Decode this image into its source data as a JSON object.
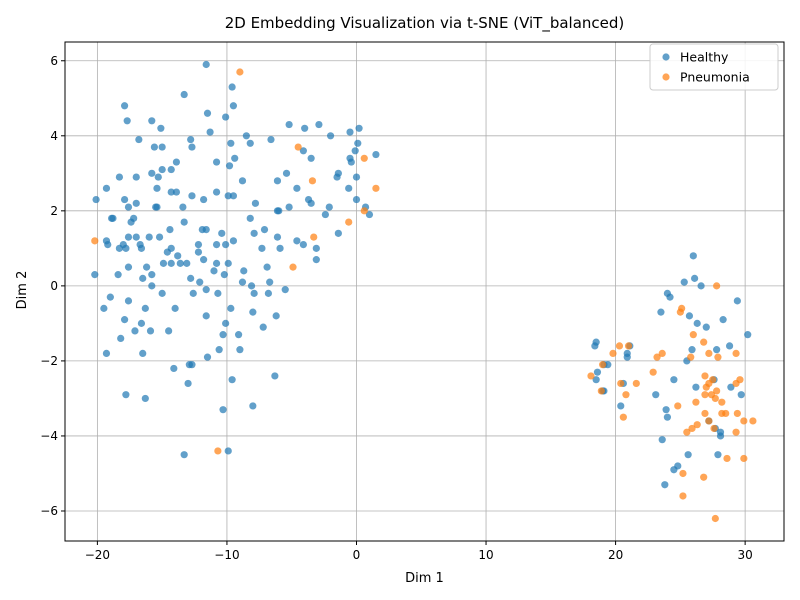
{
  "chart_data": {
    "type": "scatter",
    "title": "2D Embedding Visualization via t-SNE (ViT_balanced)",
    "xlabel": "Dim 1",
    "ylabel": "Dim 2",
    "xlim": [
      -22.5,
      33.0
    ],
    "ylim": [
      -6.8,
      6.5
    ],
    "xticks": [
      -20,
      -10,
      0,
      10,
      20,
      30
    ],
    "yticks": [
      -6,
      -4,
      -2,
      0,
      2,
      4,
      6
    ],
    "grid": true,
    "legend_position": "top-right",
    "series": [
      {
        "name": "Healthy",
        "color": "#1f77b4",
        "points": [
          [
            -11.6,
            5.9
          ],
          [
            -9.6,
            5.3
          ],
          [
            -13.3,
            5.1
          ],
          [
            -9.5,
            4.8
          ],
          [
            -17.9,
            4.8
          ],
          [
            -11.5,
            4.6
          ],
          [
            -10.1,
            4.5
          ],
          [
            -17.7,
            4.4
          ],
          [
            -15.8,
            4.4
          ],
          [
            -5.2,
            4.3
          ],
          [
            -2.9,
            4.3
          ],
          [
            -15.1,
            4.2
          ],
          [
            -4.0,
            4.2
          ],
          [
            0.2,
            4.2
          ],
          [
            -11.3,
            4.1
          ],
          [
            -0.5,
            4.1
          ],
          [
            -8.5,
            4.0
          ],
          [
            -2.0,
            4.0
          ],
          [
            -6.6,
            3.9
          ],
          [
            -12.8,
            3.9
          ],
          [
            -16.8,
            3.9
          ],
          [
            -8.2,
            3.8
          ],
          [
            -9.7,
            3.8
          ],
          [
            0.1,
            3.8
          ],
          [
            -15.6,
            3.7
          ],
          [
            -15.0,
            3.7
          ],
          [
            -12.7,
            3.7
          ],
          [
            -4.1,
            3.6
          ],
          [
            -0.1,
            3.6
          ],
          [
            -9.4,
            3.4
          ],
          [
            -3.5,
            3.4
          ],
          [
            1.5,
            3.5
          ],
          [
            -0.5,
            3.4
          ],
          [
            -0.4,
            3.3
          ],
          [
            -13.9,
            3.3
          ],
          [
            -10.8,
            3.3
          ],
          [
            -9.8,
            3.2
          ],
          [
            -15.0,
            3.1
          ],
          [
            -14.3,
            3.1
          ],
          [
            -5.4,
            3.0
          ],
          [
            -15.8,
            3.0
          ],
          [
            -15.3,
            2.9
          ],
          [
            -1.4,
            3.0
          ],
          [
            -1.5,
            2.9
          ],
          [
            -17.0,
            2.9
          ],
          [
            -18.3,
            2.9
          ],
          [
            0.0,
            2.9
          ],
          [
            -6.1,
            2.8
          ],
          [
            -8.8,
            2.8
          ],
          [
            -15.4,
            2.6
          ],
          [
            -19.3,
            2.6
          ],
          [
            -14.3,
            2.5
          ],
          [
            -13.9,
            2.5
          ],
          [
            -10.8,
            2.5
          ],
          [
            -9.9,
            2.4
          ],
          [
            -4.6,
            2.6
          ],
          [
            -0.6,
            2.6
          ],
          [
            -9.5,
            2.4
          ],
          [
            -12.7,
            2.4
          ],
          [
            -11.8,
            2.3
          ],
          [
            -20.1,
            2.3
          ],
          [
            -17.9,
            2.3
          ],
          [
            0.0,
            2.3
          ],
          [
            -3.7,
            2.3
          ],
          [
            -3.5,
            2.2
          ],
          [
            -7.8,
            2.2
          ],
          [
            -17.0,
            2.2
          ],
          [
            -17.6,
            2.1
          ],
          [
            -15.5,
            2.1
          ],
          [
            -15.4,
            2.1
          ],
          [
            -13.4,
            2.1
          ],
          [
            -2.1,
            2.1
          ],
          [
            -5.2,
            2.1
          ],
          [
            -6.1,
            2.0
          ],
          [
            0.7,
            2.1
          ],
          [
            1.0,
            1.9
          ],
          [
            -6.0,
            2.0
          ],
          [
            -2.4,
            1.9
          ],
          [
            -18.9,
            1.8
          ],
          [
            -18.8,
            1.8
          ],
          [
            -17.2,
            1.8
          ],
          [
            -17.4,
            1.7
          ],
          [
            -13.3,
            1.7
          ],
          [
            -8.2,
            1.8
          ],
          [
            -14.4,
            1.5
          ],
          [
            -11.9,
            1.5
          ],
          [
            -11.6,
            1.5
          ],
          [
            -7.1,
            1.5
          ],
          [
            -10.4,
            1.4
          ],
          [
            -7.9,
            1.4
          ],
          [
            -1.4,
            1.4
          ],
          [
            -16.0,
            1.3
          ],
          [
            -17.6,
            1.3
          ],
          [
            -15.2,
            1.3
          ],
          [
            -17.0,
            1.3
          ],
          [
            -19.3,
            1.2
          ],
          [
            -19.2,
            1.1
          ],
          [
            -16.7,
            1.1
          ],
          [
            -18.0,
            1.1
          ],
          [
            -18.3,
            1.0
          ],
          [
            -17.8,
            1.0
          ],
          [
            -16.6,
            1.0
          ],
          [
            -14.3,
            1.0
          ],
          [
            -12.2,
            1.1
          ],
          [
            -10.8,
            1.1
          ],
          [
            -10.1,
            1.1
          ],
          [
            -9.5,
            1.2
          ],
          [
            -6.1,
            1.3
          ],
          [
            -4.6,
            1.2
          ],
          [
            -4.1,
            1.1
          ],
          [
            -7.3,
            1.0
          ],
          [
            -5.9,
            1.0
          ],
          [
            -3.1,
            1.0
          ],
          [
            -14.6,
            0.9
          ],
          [
            -12.2,
            0.9
          ],
          [
            -13.8,
            0.8
          ],
          [
            -11.8,
            0.7
          ],
          [
            -10.8,
            0.6
          ],
          [
            -9.9,
            0.6
          ],
          [
            -14.9,
            0.6
          ],
          [
            -14.3,
            0.6
          ],
          [
            -13.6,
            0.6
          ],
          [
            -13.1,
            0.6
          ],
          [
            -3.1,
            0.7
          ],
          [
            -6.9,
            0.5
          ],
          [
            -16.2,
            0.5
          ],
          [
            -17.6,
            0.5
          ],
          [
            -8.7,
            0.4
          ],
          [
            -11.0,
            0.4
          ],
          [
            -18.4,
            0.3
          ],
          [
            -15.8,
            0.3
          ],
          [
            -12.8,
            0.2
          ],
          [
            -10.2,
            0.3
          ],
          [
            -16.5,
            0.2
          ],
          [
            -12.1,
            0.1
          ],
          [
            -6.7,
            0.1
          ],
          [
            -8.8,
            0.1
          ],
          [
            -8.1,
            0.0
          ],
          [
            -15.8,
            0.0
          ],
          [
            -5.5,
            -0.1
          ],
          [
            -11.6,
            -0.1
          ],
          [
            -20.2,
            0.3
          ],
          [
            -12.6,
            -0.2
          ],
          [
            -10.7,
            -0.2
          ],
          [
            -7.9,
            -0.2
          ],
          [
            -6.8,
            -0.2
          ],
          [
            -15.0,
            -0.2
          ],
          [
            -19.0,
            -0.3
          ],
          [
            -17.6,
            -0.4
          ],
          [
            -9.7,
            -0.6
          ],
          [
            -19.5,
            -0.6
          ],
          [
            -16.3,
            -0.6
          ],
          [
            -14.0,
            -0.6
          ],
          [
            -11.6,
            -0.8
          ],
          [
            -8.0,
            -0.7
          ],
          [
            -6.2,
            -0.8
          ],
          [
            -17.9,
            -0.9
          ],
          [
            -16.6,
            -1.0
          ],
          [
            -10.1,
            -1.0
          ],
          [
            -7.2,
            -1.1
          ],
          [
            -17.1,
            -1.2
          ],
          [
            -15.9,
            -1.2
          ],
          [
            -14.5,
            -1.2
          ],
          [
            -9.1,
            -1.3
          ],
          [
            -10.3,
            -1.3
          ],
          [
            -18.2,
            -1.4
          ],
          [
            -16.5,
            -1.8
          ],
          [
            -19.3,
            -1.8
          ],
          [
            -9.0,
            -1.7
          ],
          [
            -10.6,
            -1.7
          ],
          [
            -11.5,
            -1.9
          ],
          [
            -12.7,
            -2.1
          ],
          [
            -12.9,
            -2.1
          ],
          [
            -14.1,
            -2.2
          ],
          [
            -6.3,
            -2.4
          ],
          [
            -9.6,
            -2.5
          ],
          [
            -13.0,
            -2.6
          ],
          [
            -17.8,
            -2.9
          ],
          [
            -16.3,
            -3.0
          ],
          [
            -8.0,
            -3.2
          ],
          [
            -10.3,
            -3.3
          ],
          [
            -9.9,
            -4.4
          ],
          [
            -13.3,
            -4.5
          ],
          [
            26.0,
            0.8
          ],
          [
            25.3,
            0.1
          ],
          [
            26.1,
            0.2
          ],
          [
            26.6,
            0.0
          ],
          [
            24.0,
            -0.2
          ],
          [
            24.2,
            -0.3
          ],
          [
            29.4,
            -0.4
          ],
          [
            23.5,
            -0.7
          ],
          [
            25.7,
            -0.8
          ],
          [
            26.3,
            -1.0
          ],
          [
            28.3,
            -0.9
          ],
          [
            27.0,
            -1.1
          ],
          [
            30.2,
            -1.3
          ],
          [
            18.5,
            -1.5
          ],
          [
            18.4,
            -1.6
          ],
          [
            21.1,
            -1.6
          ],
          [
            28.8,
            -1.6
          ],
          [
            27.8,
            -1.7
          ],
          [
            25.9,
            -1.7
          ],
          [
            20.9,
            -1.8
          ],
          [
            20.9,
            -1.9
          ],
          [
            25.5,
            -2.0
          ],
          [
            19.4,
            -2.1
          ],
          [
            19.1,
            -2.1
          ],
          [
            18.6,
            -2.3
          ],
          [
            18.5,
            -2.5
          ],
          [
            20.6,
            -2.6
          ],
          [
            26.2,
            -2.7
          ],
          [
            24.5,
            -2.5
          ],
          [
            27.6,
            -2.5
          ],
          [
            28.9,
            -2.7
          ],
          [
            29.7,
            -2.9
          ],
          [
            19.0,
            -2.8
          ],
          [
            19.1,
            -2.8
          ],
          [
            23.1,
            -2.9
          ],
          [
            20.4,
            -3.2
          ],
          [
            23.9,
            -3.3
          ],
          [
            24.0,
            -3.5
          ],
          [
            27.2,
            -3.6
          ],
          [
            27.7,
            -3.8
          ],
          [
            28.1,
            -3.9
          ],
          [
            28.1,
            -4.0
          ],
          [
            23.6,
            -4.1
          ],
          [
            27.9,
            -4.5
          ],
          [
            25.6,
            -4.5
          ],
          [
            24.8,
            -4.8
          ],
          [
            24.5,
            -4.9
          ],
          [
            23.8,
            -5.3
          ]
        ]
      },
      {
        "name": "Pneumonia",
        "color": "#ff7f0e",
        "points": [
          [
            -9.0,
            5.7
          ],
          [
            -4.5,
            3.7
          ],
          [
            0.6,
            3.4
          ],
          [
            -3.4,
            2.8
          ],
          [
            1.5,
            2.6
          ],
          [
            0.6,
            2.0
          ],
          [
            -0.6,
            1.7
          ],
          [
            -3.3,
            1.3
          ],
          [
            -4.9,
            0.5
          ],
          [
            -20.2,
            1.2
          ],
          [
            -10.7,
            -4.4
          ],
          [
            27.8,
            0.0
          ],
          [
            25.1,
            -0.6
          ],
          [
            25.0,
            -0.7
          ],
          [
            26.0,
            -1.3
          ],
          [
            20.3,
            -1.6
          ],
          [
            26.8,
            -1.5
          ],
          [
            21.0,
            -1.6
          ],
          [
            23.6,
            -1.8
          ],
          [
            23.2,
            -1.9
          ],
          [
            19.8,
            -1.8
          ],
          [
            25.8,
            -1.9
          ],
          [
            27.2,
            -1.8
          ],
          [
            27.9,
            -1.9
          ],
          [
            29.3,
            -1.8
          ],
          [
            19.0,
            -2.1
          ],
          [
            22.9,
            -2.3
          ],
          [
            18.1,
            -2.4
          ],
          [
            20.4,
            -2.6
          ],
          [
            21.6,
            -2.6
          ],
          [
            26.9,
            -2.4
          ],
          [
            27.5,
            -2.5
          ],
          [
            29.6,
            -2.5
          ],
          [
            29.3,
            -2.6
          ],
          [
            27.2,
            -2.6
          ],
          [
            27.0,
            -2.7
          ],
          [
            27.8,
            -2.8
          ],
          [
            26.9,
            -2.9
          ],
          [
            27.4,
            -2.9
          ],
          [
            20.8,
            -2.9
          ],
          [
            18.9,
            -2.8
          ],
          [
            27.7,
            -3.0
          ],
          [
            28.2,
            -3.1
          ],
          [
            26.2,
            -3.1
          ],
          [
            24.8,
            -3.2
          ],
          [
            28.2,
            -3.4
          ],
          [
            28.5,
            -3.4
          ],
          [
            29.4,
            -3.4
          ],
          [
            26.9,
            -3.4
          ],
          [
            20.6,
            -3.5
          ],
          [
            27.2,
            -3.6
          ],
          [
            29.9,
            -3.6
          ],
          [
            30.6,
            -3.6
          ],
          [
            26.3,
            -3.7
          ],
          [
            25.9,
            -3.8
          ],
          [
            27.6,
            -3.8
          ],
          [
            25.5,
            -3.9
          ],
          [
            29.3,
            -3.9
          ],
          [
            28.6,
            -4.6
          ],
          [
            29.9,
            -4.6
          ],
          [
            25.2,
            -5.0
          ],
          [
            26.8,
            -5.1
          ],
          [
            25.2,
            -5.6
          ],
          [
            27.7,
            -6.2
          ]
        ]
      }
    ]
  }
}
